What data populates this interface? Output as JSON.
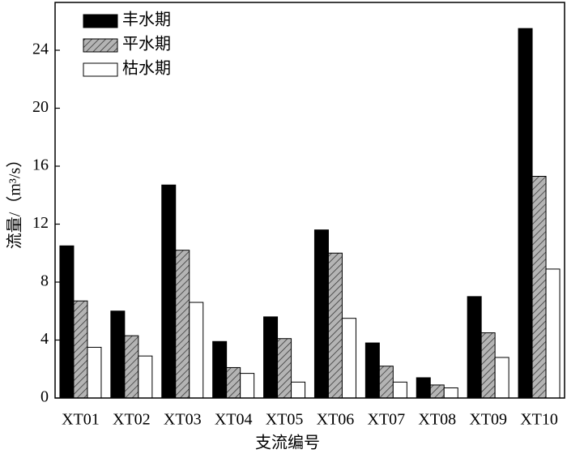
{
  "chart_data": {
    "type": "bar",
    "xlabel": "支流编号",
    "ylabel": "流量/（m³/s）",
    "categories": [
      "XT01",
      "XT02",
      "XT03",
      "XT04",
      "XT05",
      "XT06",
      "XT07",
      "XT08",
      "XT09",
      "XT10"
    ],
    "series": [
      {
        "name": "丰水期",
        "color": "#000000",
        "hatch": false,
        "values": [
          10.5,
          6.0,
          14.7,
          3.9,
          5.6,
          11.6,
          3.8,
          1.4,
          7.0,
          25.5
        ]
      },
      {
        "name": "平水期",
        "color": "#b4b4b4",
        "hatch": true,
        "values": [
          6.7,
          4.3,
          10.2,
          2.1,
          4.1,
          10.0,
          2.2,
          0.9,
          4.5,
          15.3
        ]
      },
      {
        "name": "枯水期",
        "color": "#ffffff",
        "hatch": false,
        "values": [
          3.5,
          2.9,
          6.6,
          1.7,
          1.1,
          5.5,
          1.1,
          0.7,
          2.8,
          8.9
        ]
      }
    ],
    "ylim": [
      0,
      27.3
    ],
    "yticks": [
      0,
      4,
      8,
      12,
      16,
      20,
      24
    ],
    "grid": false,
    "legend": "upper left"
  }
}
